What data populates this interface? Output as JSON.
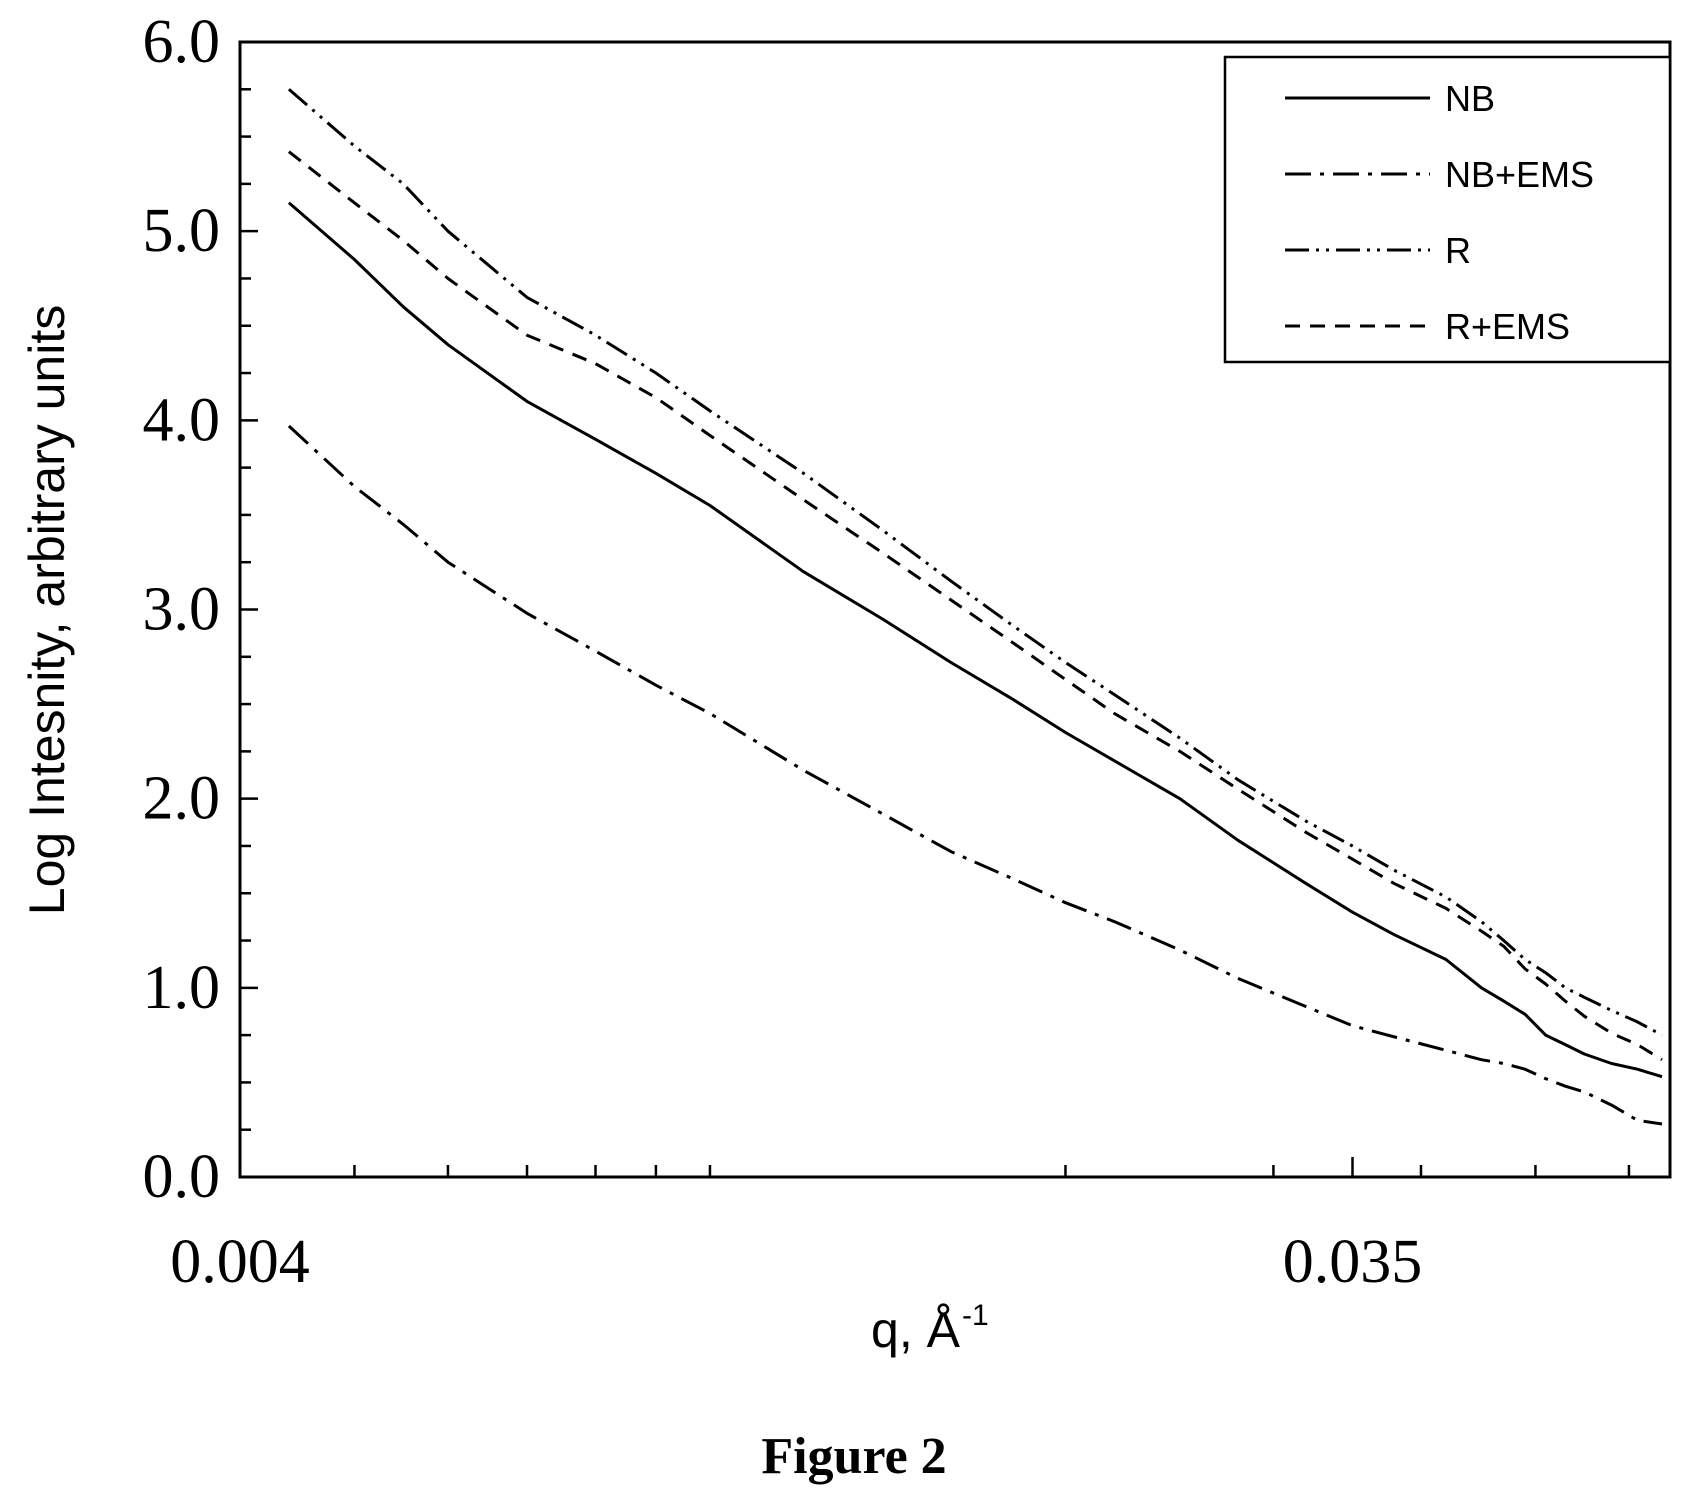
{
  "chart_data": {
    "type": "line",
    "xlabel": "q,  Å",
    "xlabel_sup": "-1",
    "ylabel": "Log Intesnity, arbitrary units",
    "xscale": "log",
    "xlim": [
      0.004,
      0.065
    ],
    "ylim": [
      0.0,
      6.0
    ],
    "x_tick_labels": [
      {
        "value": 0.004,
        "label": "0.004"
      },
      {
        "value": 0.035,
        "label": "0.035"
      }
    ],
    "y_tick_labels": [
      {
        "value": 0.0,
        "label": "0.0"
      },
      {
        "value": 1.0,
        "label": "1.0"
      },
      {
        "value": 2.0,
        "label": "2.0"
      },
      {
        "value": 3.0,
        "label": "3.0"
      },
      {
        "value": 4.0,
        "label": "4.0"
      },
      {
        "value": 5.0,
        "label": "5.0"
      },
      {
        "value": 6.0,
        "label": "6.0"
      }
    ],
    "legend_position": "top-right",
    "grid": false,
    "caption": "Figure 2",
    "series": [
      {
        "name": "NB",
        "style": "solid",
        "x": [
          0.0044,
          0.005,
          0.0055,
          0.006,
          0.007,
          0.008,
          0.009,
          0.01,
          0.012,
          0.014,
          0.016,
          0.018,
          0.02,
          0.022,
          0.025,
          0.028,
          0.032,
          0.035,
          0.038,
          0.042,
          0.045,
          0.047,
          0.049,
          0.051,
          0.053,
          0.055,
          0.058,
          0.061,
          0.064
        ],
        "y": [
          5.15,
          4.85,
          4.6,
          4.4,
          4.1,
          3.9,
          3.72,
          3.55,
          3.2,
          2.95,
          2.72,
          2.53,
          2.35,
          2.2,
          2.0,
          1.78,
          1.55,
          1.4,
          1.28,
          1.15,
          1.0,
          0.93,
          0.86,
          0.75,
          0.7,
          0.65,
          0.6,
          0.57,
          0.53
        ]
      },
      {
        "name": "NB+EMS",
        "style": "dash-dot",
        "x": [
          0.0044,
          0.005,
          0.0055,
          0.006,
          0.007,
          0.008,
          0.009,
          0.01,
          0.012,
          0.014,
          0.016,
          0.018,
          0.02,
          0.022,
          0.025,
          0.028,
          0.032,
          0.035,
          0.038,
          0.042,
          0.045,
          0.047,
          0.049,
          0.051,
          0.053,
          0.055,
          0.058,
          0.061,
          0.064
        ],
        "y": [
          3.97,
          3.65,
          3.45,
          3.25,
          2.98,
          2.78,
          2.6,
          2.45,
          2.15,
          1.92,
          1.72,
          1.58,
          1.45,
          1.35,
          1.2,
          1.05,
          0.9,
          0.8,
          0.74,
          0.67,
          0.62,
          0.6,
          0.57,
          0.52,
          0.48,
          0.45,
          0.38,
          0.3,
          0.28
        ]
      },
      {
        "name": "R",
        "style": "dash-dot-dot",
        "x": [
          0.0044,
          0.005,
          0.0055,
          0.006,
          0.007,
          0.008,
          0.009,
          0.01,
          0.012,
          0.014,
          0.016,
          0.018,
          0.02,
          0.022,
          0.025,
          0.028,
          0.032,
          0.035,
          0.038,
          0.042,
          0.045,
          0.047,
          0.049,
          0.051,
          0.053,
          0.055,
          0.058,
          0.061,
          0.064
        ],
        "y": [
          5.75,
          5.45,
          5.25,
          5.0,
          4.65,
          4.45,
          4.25,
          4.05,
          3.72,
          3.42,
          3.15,
          2.92,
          2.72,
          2.55,
          2.32,
          2.1,
          1.88,
          1.75,
          1.62,
          1.48,
          1.35,
          1.25,
          1.15,
          1.08,
          1.0,
          0.95,
          0.88,
          0.82,
          0.75
        ]
      },
      {
        "name": "R+EMS",
        "style": "dashed",
        "x": [
          0.0044,
          0.005,
          0.0055,
          0.006,
          0.007,
          0.008,
          0.009,
          0.01,
          0.012,
          0.014,
          0.016,
          0.018,
          0.02,
          0.022,
          0.025,
          0.028,
          0.032,
          0.035,
          0.038,
          0.042,
          0.045,
          0.047,
          0.049,
          0.051,
          0.053,
          0.055,
          0.058,
          0.061,
          0.064
        ],
        "y": [
          5.42,
          5.15,
          4.95,
          4.75,
          4.45,
          4.3,
          4.12,
          3.92,
          3.58,
          3.3,
          3.05,
          2.83,
          2.63,
          2.45,
          2.25,
          2.05,
          1.82,
          1.68,
          1.55,
          1.42,
          1.3,
          1.22,
          1.1,
          1.02,
          0.93,
          0.85,
          0.76,
          0.7,
          0.62
        ]
      }
    ]
  }
}
